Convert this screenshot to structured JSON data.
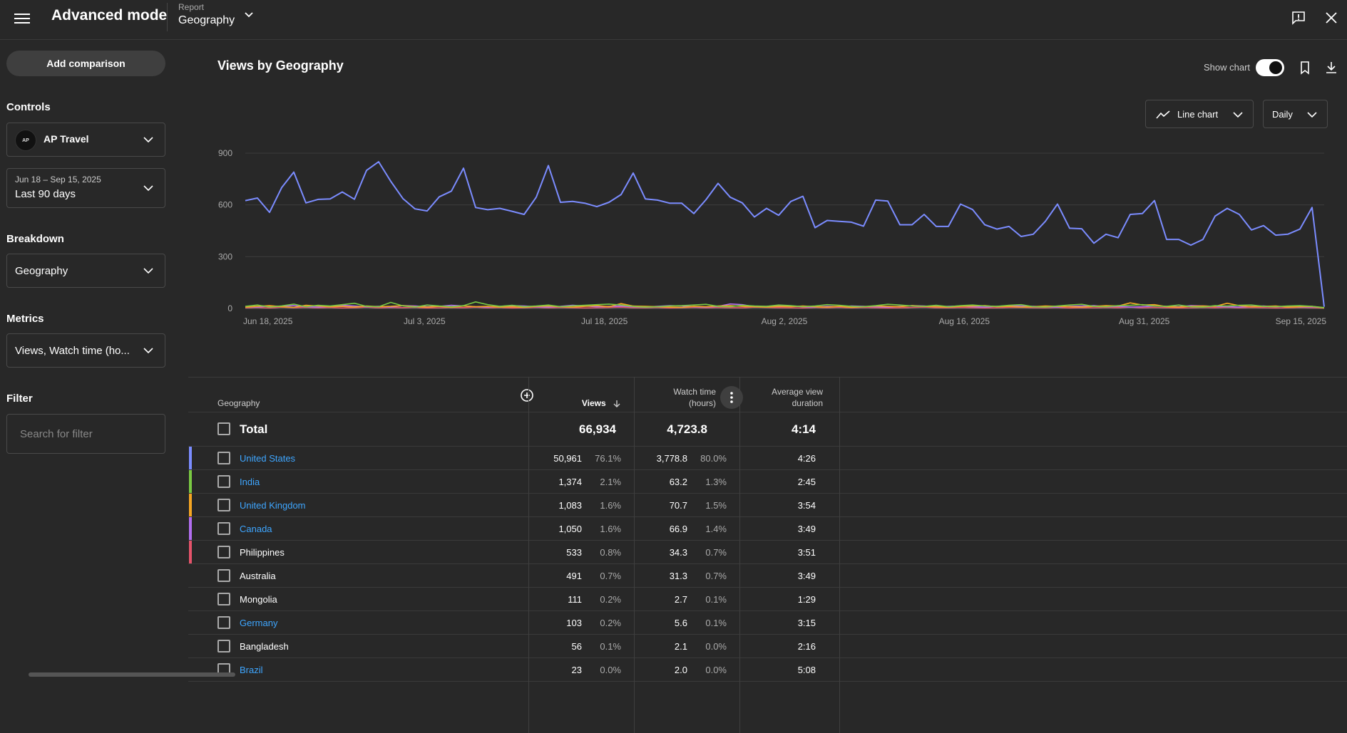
{
  "header": {
    "title": "Advanced mode",
    "report_label": "Report",
    "report_value": "Geography"
  },
  "sidebar": {
    "add_comparison": "Add comparison",
    "controls_title": "Controls",
    "channel": "AP Travel",
    "channel_avatar_text": "AP",
    "date_range": "Jun 18 – Sep 15, 2025",
    "date_preset": "Last 90 days",
    "breakdown_title": "Breakdown",
    "breakdown_value": "Geography",
    "metrics_title": "Metrics",
    "metrics_value": "Views, Watch time (ho...",
    "filter_title": "Filter",
    "filter_placeholder": "Search for filter"
  },
  "chart": {
    "title": "Views by Geography",
    "show_chart_label": "Show chart",
    "show_chart_on": true,
    "chart_type_label": "Line chart",
    "interval_label": "Daily"
  },
  "chart_data": {
    "type": "line",
    "ylim": [
      0,
      900
    ],
    "yticks": [
      "0",
      "300",
      "600",
      "900"
    ],
    "xticks": [
      "Jun 18, 2025",
      "Jul 3, 2025",
      "Jul 18, 2025",
      "Aug 2, 2025",
      "Aug 16, 2025",
      "Aug 31, 2025",
      "Sep 15, 2025"
    ],
    "grid": true,
    "series": [
      {
        "color": "#7b8cff",
        "values": [
          625,
          640,
          557,
          700,
          790,
          612,
          632,
          635,
          675,
          633,
          800,
          850,
          737,
          637,
          577,
          565,
          647,
          680,
          813,
          585,
          572,
          580,
          563,
          545,
          645,
          828,
          615,
          620,
          610,
          590,
          615,
          660,
          785,
          635,
          628,
          610,
          610,
          550,
          630,
          725,
          645,
          612,
          530,
          580,
          540,
          620,
          650,
          468,
          510,
          505,
          500,
          477,
          628,
          622,
          485,
          485,
          545,
          475,
          475,
          605,
          573,
          485,
          460,
          475,
          417,
          430,
          505,
          605,
          465,
          462,
          378,
          430,
          410,
          545,
          550,
          625,
          400,
          400,
          367,
          400,
          535,
          580,
          545,
          455,
          480,
          425,
          430,
          460,
          585,
          10
        ]
      },
      {
        "color": "#7ac943",
        "values": [
          12,
          20,
          8,
          15,
          25,
          10,
          18,
          14,
          22,
          30,
          12,
          10,
          35,
          15,
          8,
          20,
          14,
          10,
          16,
          38,
          22,
          12,
          18,
          10,
          14,
          20,
          10,
          15,
          18,
          22,
          25,
          20,
          12,
          8,
          10,
          14,
          16,
          20,
          24,
          12,
          10,
          18,
          14,
          12,
          20,
          16,
          10,
          14,
          22,
          18,
          12,
          10,
          16,
          24,
          20,
          14,
          12,
          18,
          10,
          16,
          20,
          14,
          12,
          18,
          22,
          10,
          8,
          14,
          20,
          24,
          12,
          10,
          16,
          18,
          22,
          14,
          12,
          20,
          10,
          8,
          16,
          14,
          18,
          20,
          12,
          10,
          14,
          16,
          12,
          5
        ]
      },
      {
        "color": "#f5a623",
        "values": [
          8,
          12,
          16,
          10,
          6,
          18,
          14,
          10,
          12,
          8,
          14,
          10,
          12,
          16,
          10,
          8,
          12,
          6,
          14,
          10,
          12,
          8,
          10,
          6,
          12,
          14,
          10,
          8,
          12,
          16,
          10,
          28,
          14,
          12,
          10,
          8,
          6,
          12,
          10,
          14,
          16,
          12,
          10,
          8,
          12,
          10,
          14,
          10,
          8,
          12,
          6,
          10,
          14,
          12,
          10,
          16,
          12,
          10,
          8,
          12,
          14,
          16,
          10,
          12,
          8,
          10,
          14,
          12,
          10,
          8,
          12,
          16,
          14,
          32,
          20,
          22,
          10,
          8,
          12,
          14,
          12,
          30,
          16,
          10,
          12,
          14,
          8,
          10,
          12,
          3
        ]
      },
      {
        "color": "#b26ef0",
        "values": [
          10,
          8,
          14,
          12,
          16,
          10,
          8,
          12,
          18,
          14,
          10,
          12,
          8,
          16,
          14,
          10,
          12,
          18,
          14,
          10,
          8,
          12,
          16,
          14,
          10,
          8,
          12,
          18,
          14,
          10,
          12,
          14,
          10,
          8,
          12,
          16,
          14,
          10,
          8,
          12,
          26,
          22,
          10,
          12,
          16,
          14,
          10,
          8,
          12,
          10,
          14,
          12,
          10,
          8,
          12,
          16,
          14,
          10,
          12,
          14,
          10,
          8,
          12,
          16,
          14,
          12,
          10,
          8,
          12,
          14,
          16,
          10,
          12,
          8,
          10,
          14,
          12,
          10,
          16,
          14,
          12,
          10,
          8,
          12,
          14,
          10,
          12,
          8,
          10,
          4
        ]
      },
      {
        "color": "#e5536a",
        "values": [
          4,
          6,
          3,
          8,
          5,
          7,
          4,
          6,
          3,
          5,
          8,
          4,
          6,
          5,
          7,
          3,
          4,
          6,
          5,
          8,
          4,
          6,
          3,
          5,
          7,
          4,
          6,
          5,
          3,
          4,
          6,
          8,
          5,
          4,
          6,
          3,
          5,
          7,
          4,
          6,
          5,
          4,
          8,
          6,
          5,
          4,
          3,
          6,
          5,
          7,
          4,
          6,
          5,
          3,
          4,
          6,
          8,
          5,
          4,
          6,
          5,
          3,
          4,
          6,
          7,
          5,
          4,
          6,
          3,
          5,
          4,
          6,
          5,
          8,
          4,
          6,
          5,
          3,
          4,
          6,
          5,
          7,
          4,
          6,
          5,
          3,
          4,
          6,
          5,
          2
        ]
      }
    ]
  },
  "table": {
    "col_geography": "Geography",
    "col_views": "Views",
    "col_watch_time_1": "Watch time",
    "col_watch_time_2": "(hours)",
    "col_avg_1": "Average view",
    "col_avg_2": "duration",
    "total": {
      "name": "Total",
      "views": "66,934",
      "watch": "4,723.8",
      "avg": "4:14"
    },
    "rows": [
      {
        "name": "United States",
        "link": true,
        "color": "#7b8cff",
        "views": "50,961",
        "views_pct": "76.1%",
        "watch": "3,778.8",
        "watch_pct": "80.0%",
        "avg": "4:26"
      },
      {
        "name": "India",
        "link": true,
        "color": "#7ac943",
        "views": "1,374",
        "views_pct": "2.1%",
        "watch": "63.2",
        "watch_pct": "1.3%",
        "avg": "2:45"
      },
      {
        "name": "United Kingdom",
        "link": true,
        "color": "#f5a623",
        "views": "1,083",
        "views_pct": "1.6%",
        "watch": "70.7",
        "watch_pct": "1.5%",
        "avg": "3:54"
      },
      {
        "name": "Canada",
        "link": true,
        "color": "#b26ef0",
        "views": "1,050",
        "views_pct": "1.6%",
        "watch": "66.9",
        "watch_pct": "1.4%",
        "avg": "3:49"
      },
      {
        "name": "Philippines",
        "link": false,
        "color": "#e5536a",
        "views": "533",
        "views_pct": "0.8%",
        "watch": "34.3",
        "watch_pct": "0.7%",
        "avg": "3:51"
      },
      {
        "name": "Australia",
        "link": false,
        "color": "",
        "views": "491",
        "views_pct": "0.7%",
        "watch": "31.3",
        "watch_pct": "0.7%",
        "avg": "3:49"
      },
      {
        "name": "Mongolia",
        "link": false,
        "color": "",
        "views": "111",
        "views_pct": "0.2%",
        "watch": "2.7",
        "watch_pct": "0.1%",
        "avg": "1:29"
      },
      {
        "name": "Germany",
        "link": true,
        "color": "",
        "views": "103",
        "views_pct": "0.2%",
        "watch": "5.6",
        "watch_pct": "0.1%",
        "avg": "3:15"
      },
      {
        "name": "Bangladesh",
        "link": false,
        "color": "",
        "views": "56",
        "views_pct": "0.1%",
        "watch": "2.1",
        "watch_pct": "0.0%",
        "avg": "2:16"
      },
      {
        "name": "Brazil",
        "link": true,
        "color": "",
        "views": "23",
        "views_pct": "0.0%",
        "watch": "2.0",
        "watch_pct": "0.0%",
        "avg": "5:08"
      }
    ]
  }
}
